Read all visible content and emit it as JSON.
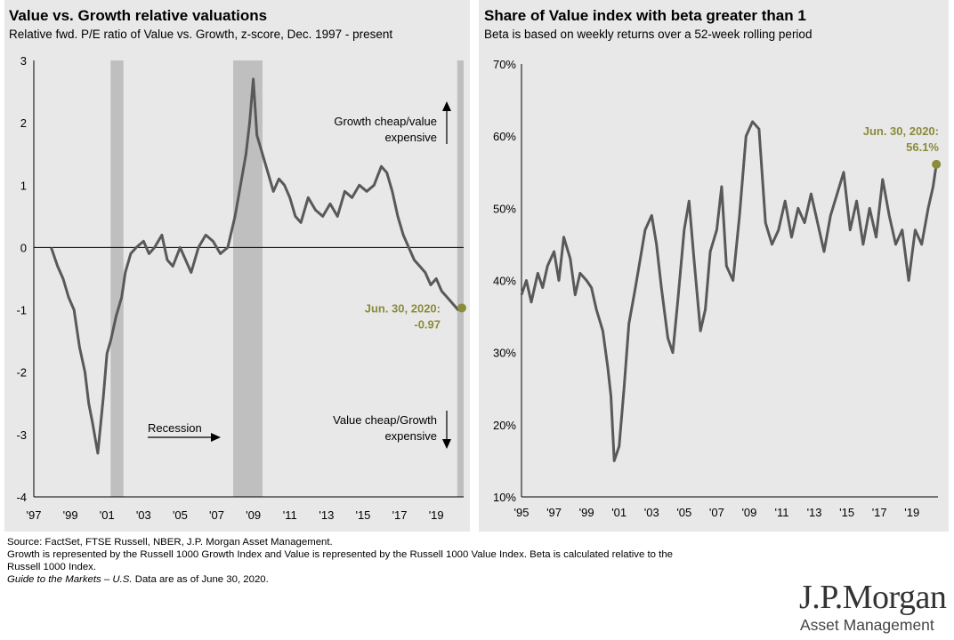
{
  "chart_data": [
    {
      "type": "line",
      "title": "Value vs. Growth relative valuations",
      "subtitle": "Relative fwd. P/E ratio of Value vs. Growth, z-score, Dec. 1997 - present",
      "ylim": [
        -4,
        3
      ],
      "yticks": [
        "3",
        "2",
        "1",
        "0",
        "-1",
        "-2",
        "-3",
        "-4"
      ],
      "xlim": [
        1997,
        2020.5
      ],
      "xticks": [
        "'97",
        "'99",
        "'01",
        "'03",
        "'05",
        "'07",
        "'09",
        "'11",
        "'13",
        "'15",
        "'17",
        "'19"
      ],
      "recessions": [
        [
          2001.2,
          2001.9
        ],
        [
          2007.9,
          2009.5
        ],
        [
          2020.15,
          2020.5
        ]
      ],
      "series": [
        {
          "color": "#595959",
          "x": [
            1997.95,
            1998.3,
            1998.6,
            1998.9,
            1999.2,
            1999.5,
            1999.8,
            2000.0,
            2000.2,
            2000.5,
            2000.8,
            2001.0,
            2001.2,
            2001.5,
            2001.8,
            2002.0,
            2002.3,
            2002.6,
            2003.0,
            2003.3,
            2003.6,
            2004.0,
            2004.3,
            2004.6,
            2005.0,
            2005.3,
            2005.6,
            2006.0,
            2006.4,
            2006.8,
            2007.2,
            2007.6,
            2008.0,
            2008.3,
            2008.6,
            2008.8,
            2009.0,
            2009.2,
            2009.5,
            2009.8,
            2010.1,
            2010.4,
            2010.7,
            2011.0,
            2011.3,
            2011.6,
            2012.0,
            2012.4,
            2012.8,
            2013.2,
            2013.6,
            2014.0,
            2014.4,
            2014.8,
            2015.2,
            2015.6,
            2016.0,
            2016.3,
            2016.6,
            2016.9,
            2017.2,
            2017.5,
            2017.8,
            2018.1,
            2018.4,
            2018.7,
            2019.0,
            2019.3,
            2019.6,
            2019.9,
            2020.2,
            2020.4
          ],
          "values": [
            0.0,
            -0.3,
            -0.5,
            -0.8,
            -1.0,
            -1.6,
            -2.0,
            -2.5,
            -2.8,
            -3.3,
            -2.4,
            -1.7,
            -1.5,
            -1.1,
            -0.8,
            -0.4,
            -0.1,
            0.0,
            0.1,
            -0.1,
            0.0,
            0.2,
            -0.2,
            -0.3,
            0.0,
            -0.2,
            -0.4,
            0.0,
            0.2,
            0.1,
            -0.1,
            0.0,
            0.5,
            1.0,
            1.5,
            2.0,
            2.7,
            1.8,
            1.5,
            1.2,
            0.9,
            1.1,
            1.0,
            0.8,
            0.5,
            0.4,
            0.8,
            0.6,
            0.5,
            0.7,
            0.5,
            0.9,
            0.8,
            1.0,
            0.9,
            1.0,
            1.3,
            1.2,
            0.9,
            0.5,
            0.2,
            0.0,
            -0.2,
            -0.3,
            -0.4,
            -0.6,
            -0.5,
            -0.7,
            -0.8,
            -0.9,
            -1.0,
            -0.97
          ]
        }
      ],
      "annotations": {
        "growth_cheap": [
          "Growth cheap/value",
          "expensive"
        ],
        "value_cheap": [
          "Value cheap/Growth",
          "expensive"
        ],
        "recession": "Recession",
        "endpoint": [
          "Jun. 30, 2020:",
          "-0.97"
        ],
        "endpoint_value": -0.97,
        "endpoint_color": "#8b8b3b"
      }
    },
    {
      "type": "line",
      "title": "Share of Value index with beta greater than 1",
      "subtitle": "Beta is based on weekly returns over a 52-week rolling period",
      "ylim": [
        10,
        70
      ],
      "yticks": [
        "70%",
        "60%",
        "50%",
        "40%",
        "30%",
        "20%",
        "10%"
      ],
      "xlim": [
        1995,
        2020.6
      ],
      "xticks": [
        "'95",
        "'97",
        "'99",
        "'01",
        "'03",
        "'05",
        "'07",
        "'09",
        "'11",
        "'13",
        "'15",
        "'17",
        "'19"
      ],
      "series": [
        {
          "color": "#595959",
          "x": [
            1995.0,
            1995.3,
            1995.6,
            1996.0,
            1996.3,
            1996.6,
            1997.0,
            1997.3,
            1997.6,
            1998.0,
            1998.3,
            1998.6,
            1999.0,
            1999.3,
            1999.6,
            2000.0,
            2000.3,
            2000.5,
            2000.7,
            2001.0,
            2001.3,
            2001.6,
            2002.0,
            2002.3,
            2002.6,
            2003.0,
            2003.3,
            2003.6,
            2004.0,
            2004.3,
            2004.6,
            2005.0,
            2005.3,
            2005.6,
            2006.0,
            2006.3,
            2006.6,
            2007.0,
            2007.3,
            2007.6,
            2008.0,
            2008.4,
            2008.8,
            2009.2,
            2009.6,
            2010.0,
            2010.4,
            2010.8,
            2011.2,
            2011.6,
            2012.0,
            2012.4,
            2012.8,
            2013.2,
            2013.6,
            2014.0,
            2014.4,
            2014.8,
            2015.2,
            2015.6,
            2016.0,
            2016.4,
            2016.8,
            2017.2,
            2017.6,
            2018.0,
            2018.4,
            2018.8,
            2019.2,
            2019.6,
            2020.0,
            2020.3,
            2020.5
          ],
          "values": [
            38,
            40,
            37,
            41,
            39,
            42,
            44,
            40,
            46,
            43,
            38,
            41,
            40,
            39,
            36,
            33,
            28,
            24,
            15,
            17,
            25,
            34,
            39,
            43,
            47,
            49,
            45,
            39,
            32,
            30,
            37,
            47,
            51,
            43,
            33,
            36,
            44,
            47,
            53,
            42,
            40,
            49,
            60,
            62,
            61,
            48,
            45,
            47,
            51,
            46,
            50,
            48,
            52,
            48,
            44,
            49,
            52,
            55,
            47,
            51,
            45,
            50,
            46,
            54,
            49,
            45,
            47,
            40,
            47,
            45,
            50,
            53,
            56.1
          ]
        }
      ],
      "annotations": {
        "endpoint": [
          "Jun. 30, 2020:",
          "56.1%"
        ],
        "endpoint_value": 56.1,
        "endpoint_color": "#8b8b3b"
      }
    }
  ],
  "footer": {
    "line1": "Source: FactSet, FTSE Russell, NBER, J.P. Morgan Asset Management.",
    "line2": "Growth is represented by the Russell 1000 Growth Index and Value is represented by the Russell 1000 Value Index. Beta is calculated relative to the",
    "line3": "Russell 1000 Index.",
    "line4_italic": "Guide to the Markets – U.S.",
    "line4_rest": " Data are as of June 30, 2020."
  },
  "logo": {
    "main": "J.P.Morgan",
    "sub": "Asset Management"
  }
}
